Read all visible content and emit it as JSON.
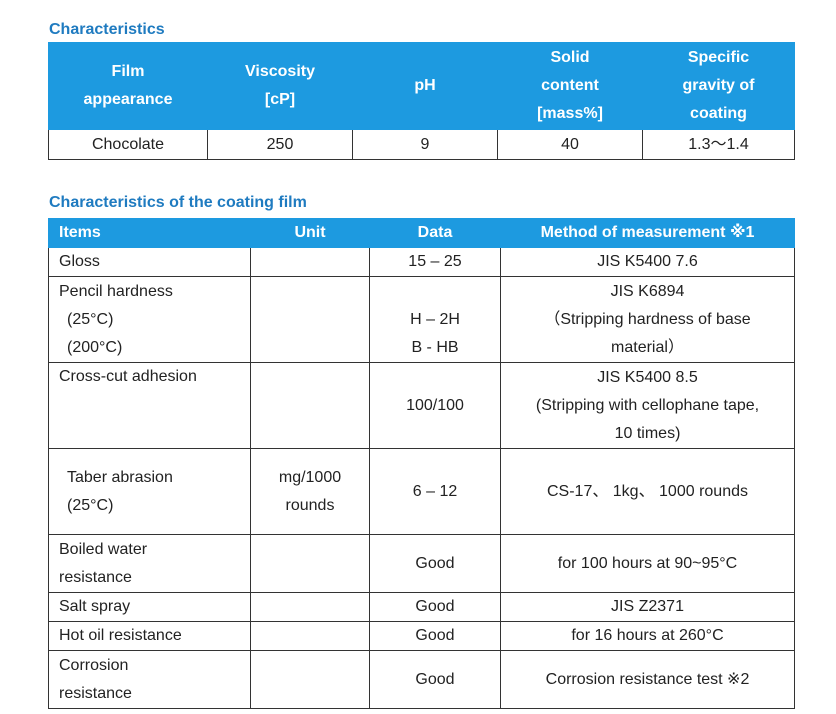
{
  "section1": {
    "title": "Characteristics",
    "headers": [
      [
        "Film",
        "appearance"
      ],
      [
        "Viscosity",
        "[cP]"
      ],
      [
        "pH"
      ],
      [
        "Solid",
        "content",
        "[mass%]"
      ],
      [
        "Specific",
        "gravity of",
        "coating"
      ]
    ],
    "row": [
      "Chocolate",
      "250",
      "9",
      "40",
      "1.3〜1.4"
    ]
  },
  "section2": {
    "title": "Characteristics of the coating film",
    "headers": [
      "Items",
      "Unit",
      "Data",
      "Method of measurement ※1"
    ],
    "rows": {
      "gloss": {
        "item": "Gloss",
        "data": "15 – 25",
        "method": "JIS K5400 7.6"
      },
      "pencil": {
        "item": "Pencil hardness",
        "sub1": "(25°C)",
        "sub2": "(200°C)",
        "data1": "H – 2H",
        "data2": "B - HB",
        "method1": "JIS K6894",
        "method2": "（Stripping hardness of base",
        "method3": "material）"
      },
      "crosscut": {
        "item": "Cross-cut adhesion",
        "data": "100/100",
        "method1": "JIS K5400 8.5",
        "method2": "(Stripping with cellophane tape,",
        "method3": "10 times)"
      },
      "taber": {
        "item": "Taber abrasion",
        "sub": "(25°C)",
        "unit1": "mg/1000",
        "unit2": "rounds",
        "data": "6 – 12",
        "method": "CS-17、 1kg、 1000 rounds"
      },
      "boiled": {
        "item1": "Boiled water",
        "item2": "resistance",
        "data": "Good",
        "method": "for 100 hours at 90~95°C"
      },
      "salt": {
        "item": "Salt spray",
        "data": "Good",
        "method": "JIS Z2371"
      },
      "hotoil": {
        "item": "Hot oil resistance",
        "data": "Good",
        "method": "for 16 hours at 260°C"
      },
      "corrosion": {
        "item1": "Corrosion",
        "item2": "resistance",
        "data": "Good",
        "method": "Corrosion resistance test  ※2"
      }
    }
  }
}
